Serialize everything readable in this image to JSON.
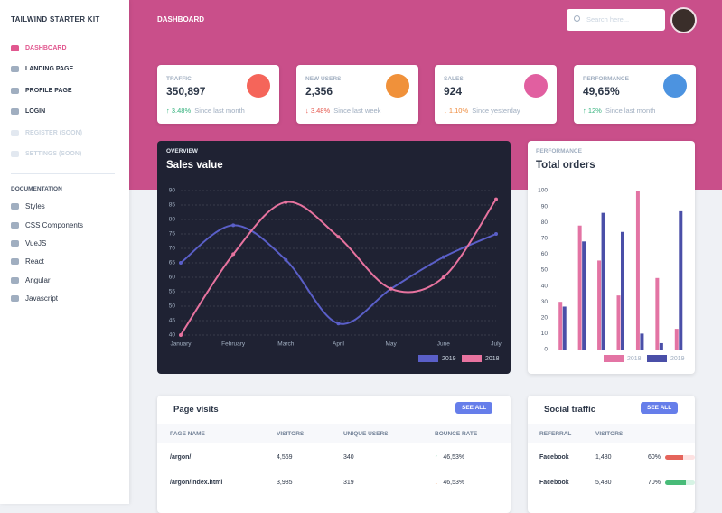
{
  "sidebar": {
    "brand": "TAILWIND STARTER KIT",
    "nav": [
      "DASHBOARD",
      "LANDING PAGE",
      "PROFILE PAGE",
      "LOGIN",
      "REGISTER (SOON)",
      "SETTINGS (SOON)"
    ],
    "section": "DOCUMENTATION",
    "docs": [
      "Styles",
      "CSS Components",
      "VueJS",
      "React",
      "Angular",
      "Javascript"
    ]
  },
  "header": {
    "title": "DASHBOARD",
    "search_placeholder": "Search here..."
  },
  "stats": [
    {
      "label": "TRAFFIC",
      "value": "350,897",
      "change": "3.48%",
      "period": "Since last month"
    },
    {
      "label": "NEW USERS",
      "value": "2,356",
      "change": "3.48%",
      "period": "Since last week"
    },
    {
      "label": "SALES",
      "value": "924",
      "change": "1.10%",
      "period": "Since yesterday"
    },
    {
      "label": "PERFORMANCE",
      "value": "49,65%",
      "change": "12%",
      "period": "Since last month"
    }
  ],
  "chart_data": [
    {
      "type": "line",
      "subtitle": "OVERVIEW",
      "title": "Sales value",
      "categories": [
        "January",
        "February",
        "March",
        "April",
        "May",
        "June",
        "July"
      ],
      "series": [
        {
          "name": "2019",
          "color": "#5a5fc8",
          "values": [
            65,
            78,
            66,
            44,
            56,
            67,
            75
          ]
        },
        {
          "name": "2018",
          "color": "#e7739f",
          "values": [
            40,
            68,
            86,
            74,
            56,
            60,
            87
          ]
        }
      ],
      "ylim": [
        40,
        90
      ],
      "yticks": [
        40,
        45,
        50,
        55,
        60,
        65,
        70,
        75,
        80,
        85,
        90
      ],
      "grid": true
    },
    {
      "type": "bar",
      "subtitle": "PERFORMANCE",
      "title": "Total orders",
      "categories": [
        null,
        null,
        null,
        null,
        null,
        null,
        null
      ],
      "series": [
        {
          "name": "2018",
          "color": "#e374a4",
          "values": [
            30,
            78,
            56,
            34,
            100,
            45,
            13
          ]
        },
        {
          "name": "2019",
          "color": "#4a4fa8",
          "values": [
            27,
            68,
            86,
            74,
            10,
            4,
            87
          ]
        }
      ],
      "ylim": [
        0,
        100
      ],
      "yticks": [
        0,
        10,
        20,
        30,
        40,
        50,
        60,
        70,
        80,
        90,
        100
      ],
      "grid": false
    }
  ],
  "page_visits": {
    "title": "Page visits",
    "button": "SEE ALL",
    "columns": [
      "PAGE NAME",
      "VISITORS",
      "UNIQUE USERS",
      "BOUNCE RATE"
    ],
    "rows": [
      [
        "/argon/",
        "4,569",
        "340",
        "46,53%"
      ],
      [
        "/argon/index.html",
        "3,985",
        "319",
        "46,53%"
      ]
    ]
  },
  "social_traffic": {
    "title": "Social traffic",
    "button": "SEE ALL",
    "columns": [
      "REFERRAL",
      "VISITORS"
    ],
    "rows": [
      [
        "Facebook",
        "1,480",
        {
          "value": 60,
          "label": "60%"
        }
      ],
      [
        "Facebook",
        "5,480",
        {
          "value": 70,
          "label": "70%"
        }
      ]
    ]
  }
}
